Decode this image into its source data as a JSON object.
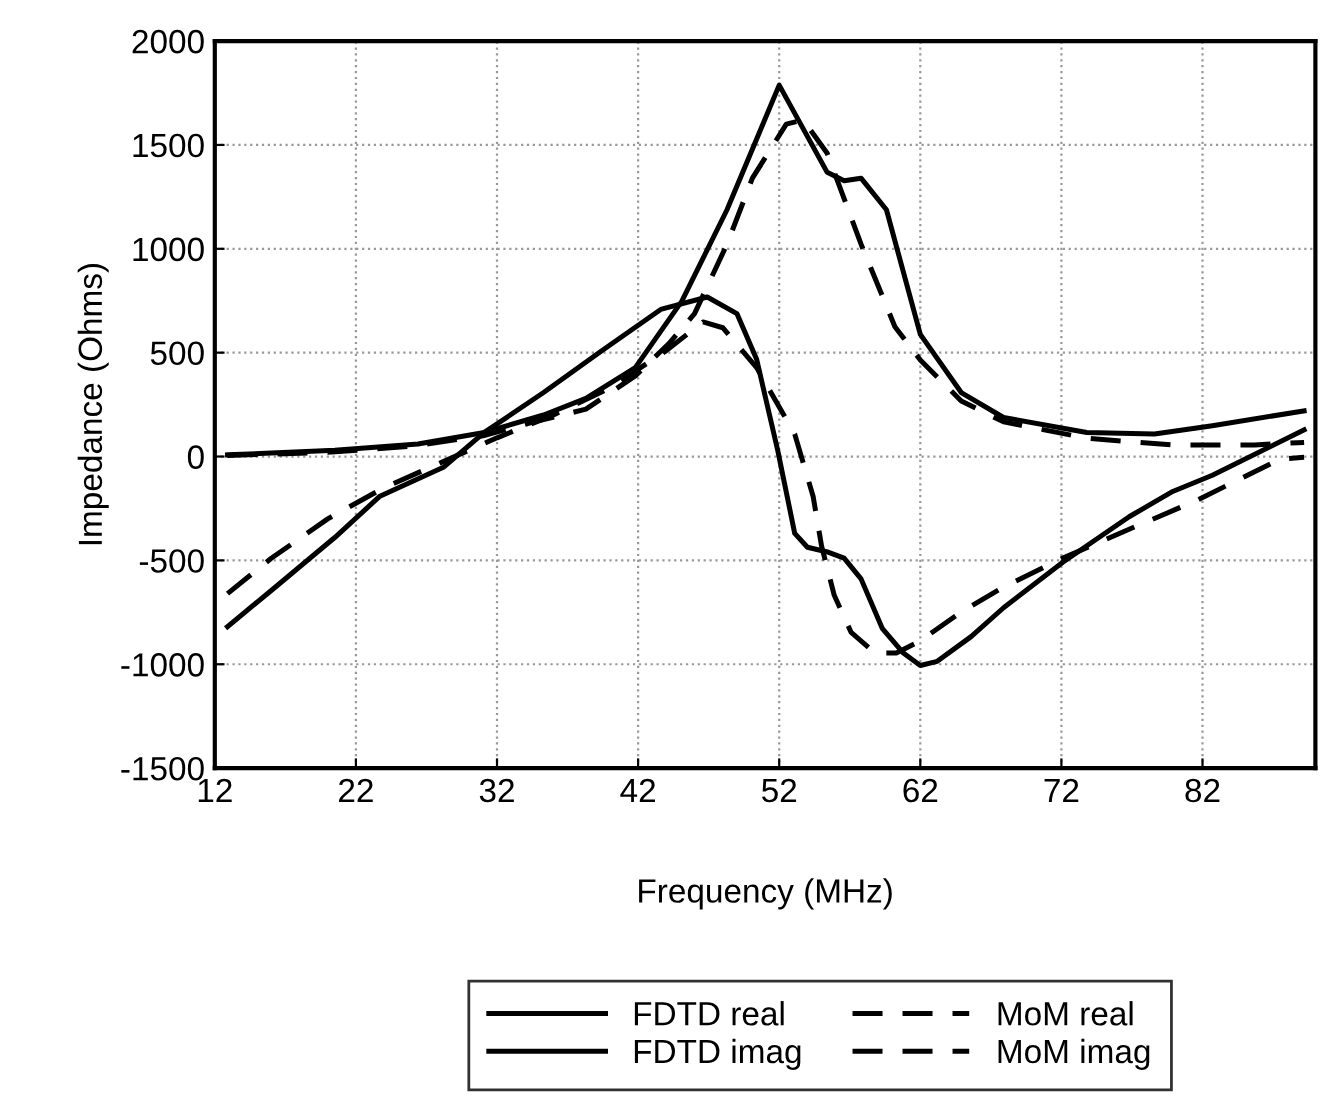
{
  "chart_data": {
    "type": "line",
    "xlabel": "Frequency (MHz)",
    "ylabel": "Impedance (Ohms)",
    "xlim": [
      12,
      90
    ],
    "xticks": [
      12,
      22,
      32,
      42,
      52,
      62,
      72,
      82
    ],
    "ylim": [
      -1500,
      2000
    ],
    "yticks": [
      -1500,
      -1000,
      -500,
      0,
      500,
      1000,
      1500,
      2000
    ],
    "grid": true,
    "legend": "bottom",
    "series": [
      {
        "name": "FDTD real",
        "color": "#000000",
        "line_style": "solid",
        "x": [
          12.9,
          20.5,
          26.4,
          31.1,
          35.3,
          38.3,
          41.8,
          45.1,
          48.3,
          52,
          55.4,
          56.6,
          57.8,
          59.6,
          62,
          64.9,
          67.9,
          73.8,
          78.6,
          82.7,
          89.2
        ],
        "values": [
          8,
          30,
          60,
          116,
          200,
          280,
          428,
          748,
          1188,
          1788,
          1368,
          1328,
          1340,
          1188,
          588,
          308,
          188,
          116,
          108,
          148,
          220
        ]
      },
      {
        "name": "FDTD imag",
        "color": "#000000",
        "line_style": "solid",
        "x": [
          12.9,
          16.3,
          20.5,
          23.7,
          28.2,
          31.1,
          35.3,
          39.4,
          43.6,
          46.9,
          49,
          50.4,
          51.9,
          53.1,
          54,
          55.5,
          56.6,
          57.8,
          59.3,
          60.8,
          62,
          63.2,
          65.6,
          67.9,
          72.1,
          76.8,
          79.8,
          82.7,
          89.2
        ],
        "values": [
          -819,
          -628,
          -390,
          -191,
          -52,
          116,
          308,
          508,
          708,
          768,
          688,
          468,
          28,
          -370,
          -437,
          -461,
          -489,
          -589,
          -827,
          -946,
          -1006,
          -986,
          -867,
          -728,
          -509,
          -290,
          -171,
          -90,
          128
        ]
      },
      {
        "name": "MoM real",
        "color": "#000000",
        "line_style": "dashed",
        "x": [
          12.9,
          20,
          26,
          31,
          34.7,
          38.3,
          41.8,
          44.2,
          46,
          48.3,
          50.1,
          52.5,
          53.7,
          55.4,
          57.8,
          60.2,
          62,
          64.9,
          67.9,
          73.8,
          79.8,
          85.7,
          89.2
        ],
        "values": [
          5,
          20,
          50,
          100,
          168,
          228,
          388,
          545,
          688,
          1022,
          1340,
          1600,
          1620,
          1460,
          1022,
          625,
          465,
          267,
          167,
          88,
          56,
          56,
          68
        ]
      },
      {
        "name": "MoM imag",
        "color": "#000000",
        "line_style": "dashed",
        "x": [
          12.9,
          16,
          20,
          24,
          28,
          32,
          36,
          40,
          44,
          46.6,
          48,
          50.4,
          53.1,
          54.4,
          55,
          55.9,
          57.1,
          58.8,
          60.3,
          62,
          64.9,
          67.9,
          72.1,
          76.8,
          81.6,
          87.5,
          89.2
        ],
        "values": [
          -660,
          -490,
          -300,
          -150,
          -30,
          90,
          200,
          330,
          510,
          648,
          620,
          428,
          108,
          -191,
          -430,
          -668,
          -847,
          -946,
          -946,
          -887,
          -748,
          -628,
          -489,
          -350,
          -211,
          -12,
          -4
        ]
      }
    ]
  }
}
